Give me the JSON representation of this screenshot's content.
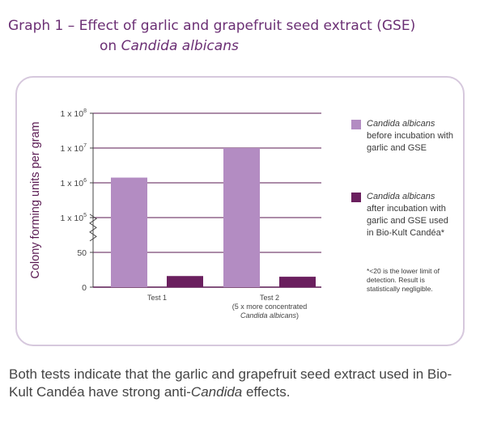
{
  "title": {
    "line1": "Graph 1 – Effect of garlic and grapefruit seed extract (GSE)",
    "line2_prefix": "on ",
    "line2_italic": "Candida albicans"
  },
  "chart_data": {
    "type": "bar",
    "categories": [
      "Test 1",
      "Test 2"
    ],
    "category_sublabels": [
      "",
      "(5 x more concentrated"
    ],
    "category_sublabels_italic": [
      "",
      "Candida albicans"
    ],
    "category_sublabels_suffix": [
      "",
      ")"
    ],
    "ylabel": "Colony forming units per gram",
    "y_axis_break": true,
    "y_ticks": [
      {
        "label": "0",
        "level": 0
      },
      {
        "label": "50",
        "level": 1
      },
      {
        "label": "1 x 10",
        "sup": "5",
        "level": 2
      },
      {
        "label": "1 x 10",
        "sup": "6",
        "level": 3
      },
      {
        "label": "1 x 10",
        "sup": "7",
        "level": 4
      },
      {
        "label": "1 x 10",
        "sup": "8",
        "level": 5
      }
    ],
    "series": [
      {
        "name": "Candida albicans before incubation with garlic and GSE",
        "color": "#b38cc2",
        "levels": [
          3.15,
          4.0
        ],
        "values": [
          1400000,
          10000000
        ]
      },
      {
        "name": "Candida albicans after incubation with garlic and GSE used in Bio-Kult Candéa*",
        "color": "#6a1f5e",
        "levels": [
          0.32,
          0.3
        ],
        "values": [
          20,
          20
        ]
      }
    ],
    "grid": true
  },
  "legend": [
    {
      "italic": "Candida albicans",
      "rest": " before incubation with garlic and GSE"
    },
    {
      "italic": "Candida albicans",
      "rest": " after incubation with garlic and GSE used in Bio-Kult Candéa*"
    }
  ],
  "note": "*<20 is the lower limit of detection. Result is statistically negligible.",
  "caption": {
    "prefix": "Both tests indicate that the garlic and grapefruit seed extract used in Bio-Kult Candéa have strong anti-",
    "italic": "Candida",
    "suffix": " effects."
  }
}
